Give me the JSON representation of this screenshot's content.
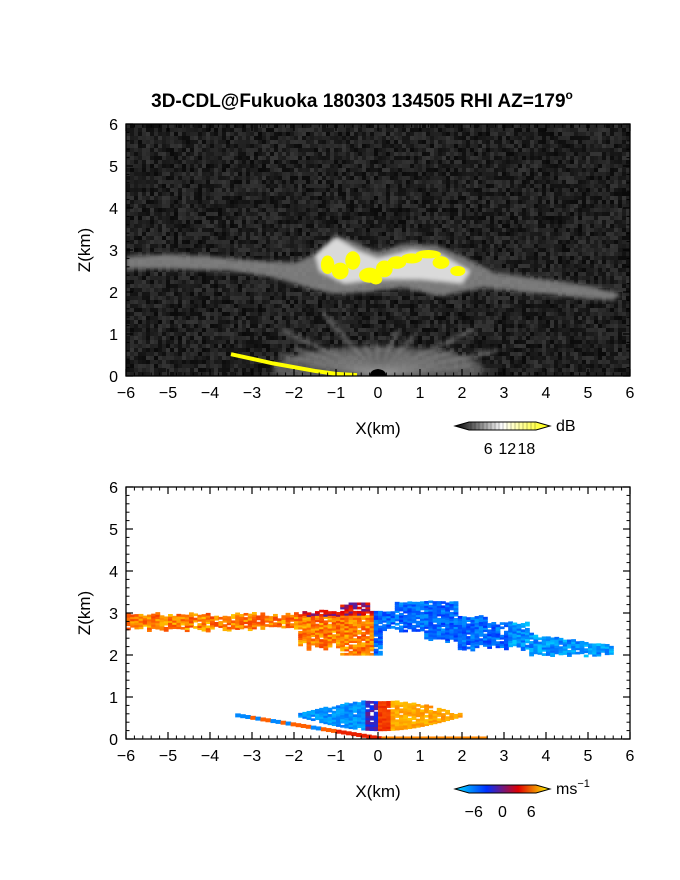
{
  "title": "3D-CDL@Fukuoka 180303 134505 RHI AZ=179",
  "title_degree": "o",
  "chart_data": [
    {
      "type": "heatmap",
      "field": "reflectivity",
      "xlabel": "X(km)",
      "ylabel": "Z(km)",
      "xlim": [
        -6,
        6
      ],
      "ylim": [
        0,
        6
      ],
      "xticks": [
        "−6",
        "−5",
        "−4",
        "−3",
        "−2",
        "−1",
        "0",
        "1",
        "2",
        "3",
        "4",
        "5",
        "6"
      ],
      "yticks": [
        "0",
        "1",
        "2",
        "3",
        "4",
        "5",
        "6"
      ],
      "colorbar": {
        "unit": "dB",
        "ticks": [
          "6",
          "12",
          "18"
        ],
        "range": [
          0,
          21
        ],
        "colors": [
          "#000000",
          "#ffffff",
          "#ffff00"
        ]
      },
      "features": [
        {
          "name": "cloud layer",
          "x_range": [
            -6,
            5.8
          ],
          "z_range": [
            1.9,
            3.1
          ],
          "level_db": 12
        },
        {
          "name": "strong echo",
          "x_range": [
            -1.3,
            2.2
          ],
          "z_range": [
            2.2,
            3.0
          ],
          "level_db": 19
        },
        {
          "name": "near-surface echo",
          "x_range": [
            -3.5,
            0
          ],
          "z_range": [
            0,
            0.5
          ],
          "level_db": 19
        }
      ]
    },
    {
      "type": "heatmap",
      "field": "radial velocity",
      "xlabel": "X(km)",
      "ylabel": "Z(km)",
      "xlim": [
        -6,
        6
      ],
      "ylim": [
        0,
        6
      ],
      "xticks": [
        "−6",
        "−5",
        "−4",
        "−3",
        "−2",
        "−1",
        "0",
        "1",
        "2",
        "3",
        "4",
        "5",
        "6"
      ],
      "yticks": [
        "0",
        "1",
        "2",
        "3",
        "4",
        "5",
        "6"
      ],
      "colorbar": {
        "unit": "ms",
        "unit_exp": "−1",
        "ticks": [
          "−6",
          "0",
          "6"
        ],
        "range": [
          -7,
          7
        ],
        "colors": [
          "#00e0ff",
          "#0030ff",
          "#e00000",
          "#ffff00"
        ]
      },
      "features": [
        {
          "name": "cloud layer west",
          "x_range": [
            -6,
            -0.2
          ],
          "z_range": [
            1.9,
            3.1
          ],
          "velocity_ms": 3
        },
        {
          "name": "cloud layer east",
          "x_range": [
            -0.2,
            5.5
          ],
          "z_range": [
            1.8,
            3.3
          ],
          "velocity_ms": -5
        },
        {
          "name": "low layer west",
          "x_range": [
            -2,
            0
          ],
          "z_range": [
            0.2,
            0.9
          ],
          "velocity_ms": -6
        },
        {
          "name": "low layer east",
          "x_range": [
            0,
            2
          ],
          "z_range": [
            0.2,
            0.9
          ],
          "velocity_ms": 6
        }
      ]
    }
  ]
}
